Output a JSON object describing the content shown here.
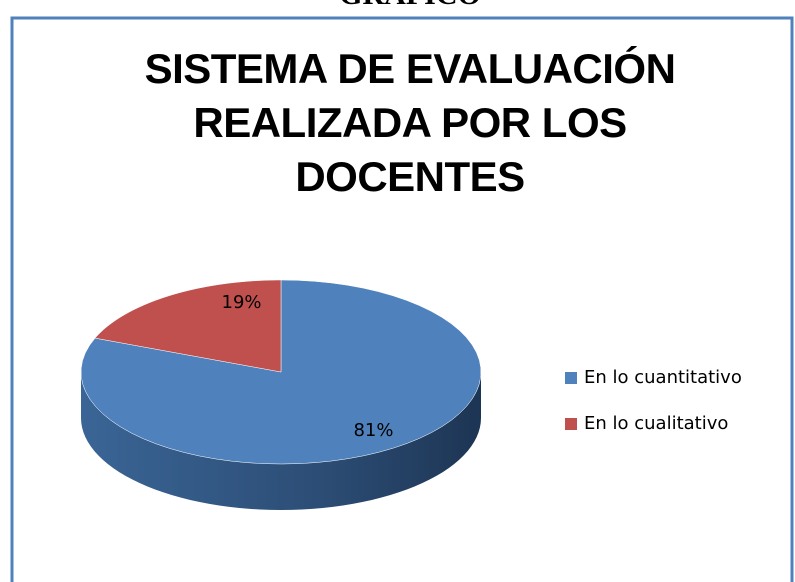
{
  "caption": "GRÁFICO",
  "chart_data": {
    "type": "pie",
    "title": "SISTEMA DE EVALUACIÓN REALIZADA POR LOS DOCENTES",
    "categories": [
      "En lo cuantitativo",
      "En lo cualitativo"
    ],
    "values": [
      81,
      19
    ],
    "value_labels": [
      "81%",
      "19%"
    ],
    "colors": [
      "#4f81bd",
      "#c0504d"
    ],
    "legend": "right"
  }
}
